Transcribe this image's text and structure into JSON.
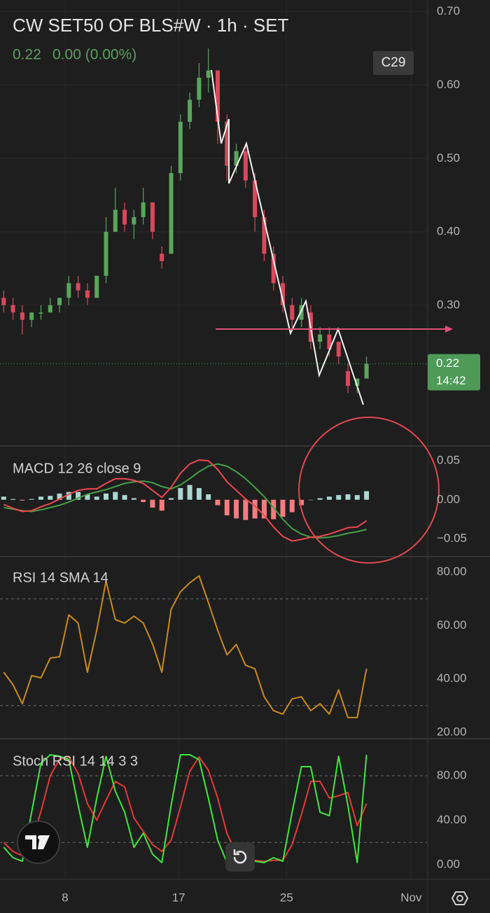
{
  "chart_data": [
    {
      "type": "candlestick",
      "title": "CW SET50 OF BLS#W · 1h · SET",
      "last_price": 0.22,
      "change_label": "0.00 (0.00%)",
      "badge": "C29",
      "countdown": "14:42",
      "x": [
        0,
        1,
        2,
        3,
        4,
        5,
        6,
        7,
        8,
        9,
        10,
        11,
        12,
        13,
        14,
        15,
        16,
        17,
        18,
        19,
        20,
        21,
        22,
        23,
        24,
        25,
        26,
        27,
        28,
        29,
        30,
        31,
        32,
        33,
        34,
        35,
        36,
        37,
        38,
        39
      ],
      "open": [
        0.31,
        0.3,
        0.29,
        0.28,
        0.29,
        0.29,
        0.3,
        0.31,
        0.33,
        0.32,
        0.31,
        0.34,
        0.4,
        0.43,
        0.41,
        0.42,
        0.44,
        0.37,
        0.37,
        0.48,
        0.55,
        0.58,
        0.61,
        0.62,
        0.55,
        0.49,
        0.51,
        0.47,
        0.42,
        0.37,
        0.33,
        0.3,
        0.28,
        0.29,
        0.25,
        0.26,
        0.25,
        0.21,
        0.19,
        0.2
      ],
      "high": [
        0.32,
        0.31,
        0.3,
        0.29,
        0.3,
        0.31,
        0.31,
        0.34,
        0.34,
        0.33,
        0.34,
        0.42,
        0.46,
        0.44,
        0.43,
        0.46,
        0.44,
        0.38,
        0.49,
        0.56,
        0.59,
        0.63,
        0.65,
        0.62,
        0.56,
        0.52,
        0.52,
        0.48,
        0.43,
        0.38,
        0.34,
        0.31,
        0.31,
        0.3,
        0.27,
        0.27,
        0.25,
        0.22,
        0.2,
        0.23
      ],
      "low": [
        0.29,
        0.28,
        0.26,
        0.27,
        0.28,
        0.29,
        0.29,
        0.3,
        0.31,
        0.3,
        0.31,
        0.33,
        0.4,
        0.4,
        0.39,
        0.41,
        0.39,
        0.35,
        0.37,
        0.47,
        0.54,
        0.57,
        0.59,
        0.52,
        0.47,
        0.48,
        0.46,
        0.4,
        0.36,
        0.32,
        0.29,
        0.27,
        0.27,
        0.24,
        0.24,
        0.23,
        0.22,
        0.18,
        0.18,
        0.2
      ],
      "close": [
        0.3,
        0.29,
        0.28,
        0.29,
        0.29,
        0.3,
        0.31,
        0.33,
        0.32,
        0.31,
        0.34,
        0.4,
        0.43,
        0.41,
        0.42,
        0.44,
        0.4,
        0.36,
        0.48,
        0.55,
        0.58,
        0.61,
        0.62,
        0.55,
        0.49,
        0.51,
        0.47,
        0.42,
        0.37,
        0.33,
        0.3,
        0.28,
        0.3,
        0.25,
        0.26,
        0.24,
        0.23,
        0.19,
        0.2,
        0.22
      ],
      "up_color": "#59a65b",
      "down_color": "#d9485b",
      "last_price_color": "#4e9a57",
      "xlim": [
        -0.4,
        45.5
      ],
      "xticks": [
        {
          "value": 6.6,
          "label": "8"
        },
        {
          "value": 18.8,
          "label": "17"
        },
        {
          "value": 30.4,
          "label": "25"
        },
        {
          "value": 43.8,
          "label": "Nov"
        }
      ],
      "ylim": [
        0.108,
        0.716
      ],
      "yticks": [
        {
          "value": 0.3,
          "label": "0.30"
        },
        {
          "value": 0.4,
          "label": "0.40"
        },
        {
          "value": 0.5,
          "label": "0.50"
        },
        {
          "value": 0.6,
          "label": "0.60"
        },
        {
          "value": 0.7,
          "label": "0.70"
        }
      ],
      "grid": true
    },
    {
      "type": "macd",
      "title": "MACD 12 26 close 9",
      "macd": {
        "color": "#f0474f",
        "values": [
          -0.006,
          -0.011,
          -0.015,
          -0.014,
          -0.009,
          -0.005,
          0.001,
          0.007,
          0.012,
          0.014,
          0.014,
          0.021,
          0.027,
          0.027,
          0.025,
          0.021,
          0.012,
          0.003,
          0.016,
          0.034,
          0.046,
          0.051,
          0.05,
          0.039,
          0.023,
          0.012,
          0.001,
          -0.008,
          -0.02,
          -0.035,
          -0.047,
          -0.053,
          -0.051,
          -0.048,
          -0.047,
          -0.044,
          -0.04,
          -0.036,
          -0.035,
          -0.027
        ]
      },
      "signal": {
        "color": "#43a047",
        "values": [
          -0.01,
          -0.012,
          -0.014,
          -0.015,
          -0.013,
          -0.01,
          -0.007,
          -0.003,
          0.002,
          0.007,
          0.01,
          0.013,
          0.017,
          0.021,
          0.023,
          0.024,
          0.022,
          0.017,
          0.014,
          0.019,
          0.027,
          0.036,
          0.043,
          0.046,
          0.043,
          0.036,
          0.027,
          0.016,
          0.004,
          -0.01,
          -0.025,
          -0.037,
          -0.044,
          -0.048,
          -0.049,
          -0.048,
          -0.046,
          -0.043,
          -0.041,
          -0.038
        ]
      },
      "histogram": [
        0.004,
        0.001,
        -0.001,
        0.001,
        0.004,
        0.005,
        0.008,
        0.01,
        0.01,
        0.007,
        0.004,
        0.008,
        0.01,
        0.006,
        0.002,
        -0.003,
        -0.01,
        -0.014,
        0.002,
        0.015,
        0.019,
        0.015,
        0.007,
        -0.007,
        -0.02,
        -0.024,
        -0.026,
        -0.024,
        -0.024,
        -0.025,
        -0.022,
        -0.016,
        -0.007,
        0.0,
        0.002,
        0.004,
        0.006,
        0.007,
        0.006,
        0.011
      ],
      "histogram_colors": {
        "positive": "#a9d8d2",
        "negative": "#f77c80"
      },
      "ylim": [
        -0.073,
        0.069
      ],
      "yticks": [
        {
          "value": -0.05,
          "label": "−0.05"
        },
        {
          "value": 0,
          "label": "0.00"
        },
        {
          "value": 0.05,
          "label": "0.05"
        }
      ]
    },
    {
      "type": "rsi",
      "title": "RSI 14 SMA 14",
      "rsi": {
        "color": "#c98a1f",
        "values": [
          42.5,
          37.8,
          30.7,
          41.2,
          40.4,
          47.8,
          48.3,
          64.0,
          60.9,
          42.5,
          58.2,
          76.6,
          62.2,
          60.9,
          63.5,
          60.9,
          53.0,
          42.5,
          66.1,
          72.6,
          76.0,
          78.6,
          68.6,
          58.2,
          49.0,
          52.9,
          45.1,
          43.8,
          33.3,
          28.1,
          26.8,
          32.5,
          33.3,
          28.1,
          30.7,
          26.8,
          35.9,
          25.5,
          25.5,
          43.8
        ]
      },
      "bands": [
        30,
        70
      ],
      "ylim": [
        17.6,
        85.8
      ],
      "yticks": [
        {
          "value": 20,
          "label": "20.00"
        },
        {
          "value": 40,
          "label": "40.00"
        },
        {
          "value": 60,
          "label": "60.00"
        },
        {
          "value": 80,
          "label": "80.00"
        }
      ]
    },
    {
      "type": "stoch",
      "title": "Stoch RSI 14 14 3 3",
      "k": {
        "color": "#3ee83e",
        "values": [
          15.7,
          6.3,
          3.1,
          47.2,
          91.3,
          98.9,
          97.6,
          94.5,
          53.5,
          15.7,
          59.8,
          97.6,
          66.1,
          47.2,
          15.7,
          28.3,
          9.4,
          1.9,
          53.5,
          98.9,
          98.9,
          94.5,
          59.8,
          22.0,
          1.9,
          6.3,
          3.1,
          3.1,
          1.9,
          6.3,
          3.1,
          47.2,
          88.2,
          88.2,
          47.2,
          44.1,
          97.6,
          53.5,
          1.9,
          98.9
        ]
      },
      "d": {
        "color": "#e53935",
        "values": [
          20.0,
          12.0,
          8.0,
          20.0,
          48.0,
          80.0,
          95.0,
          97.0,
          82.0,
          55.0,
          40.0,
          58.0,
          75.0,
          70.0,
          42.0,
          30.0,
          18.0,
          12.0,
          22.0,
          52.0,
          84.0,
          97.0,
          85.0,
          60.0,
          28.0,
          10.0,
          4.0,
          4.0,
          3.0,
          4.0,
          4.0,
          18.0,
          45.0,
          75.0,
          75.0,
          60.0,
          62.0,
          65.0,
          35.0,
          55.0
        ]
      },
      "bands": [
        20,
        80
      ],
      "ylim": [
        -12.6,
        113.4
      ],
      "yticks": [
        {
          "value": 0,
          "label": "0.00"
        },
        {
          "value": 40,
          "label": "40.00"
        },
        {
          "value": 80,
          "label": "80.00"
        }
      ]
    }
  ]
}
